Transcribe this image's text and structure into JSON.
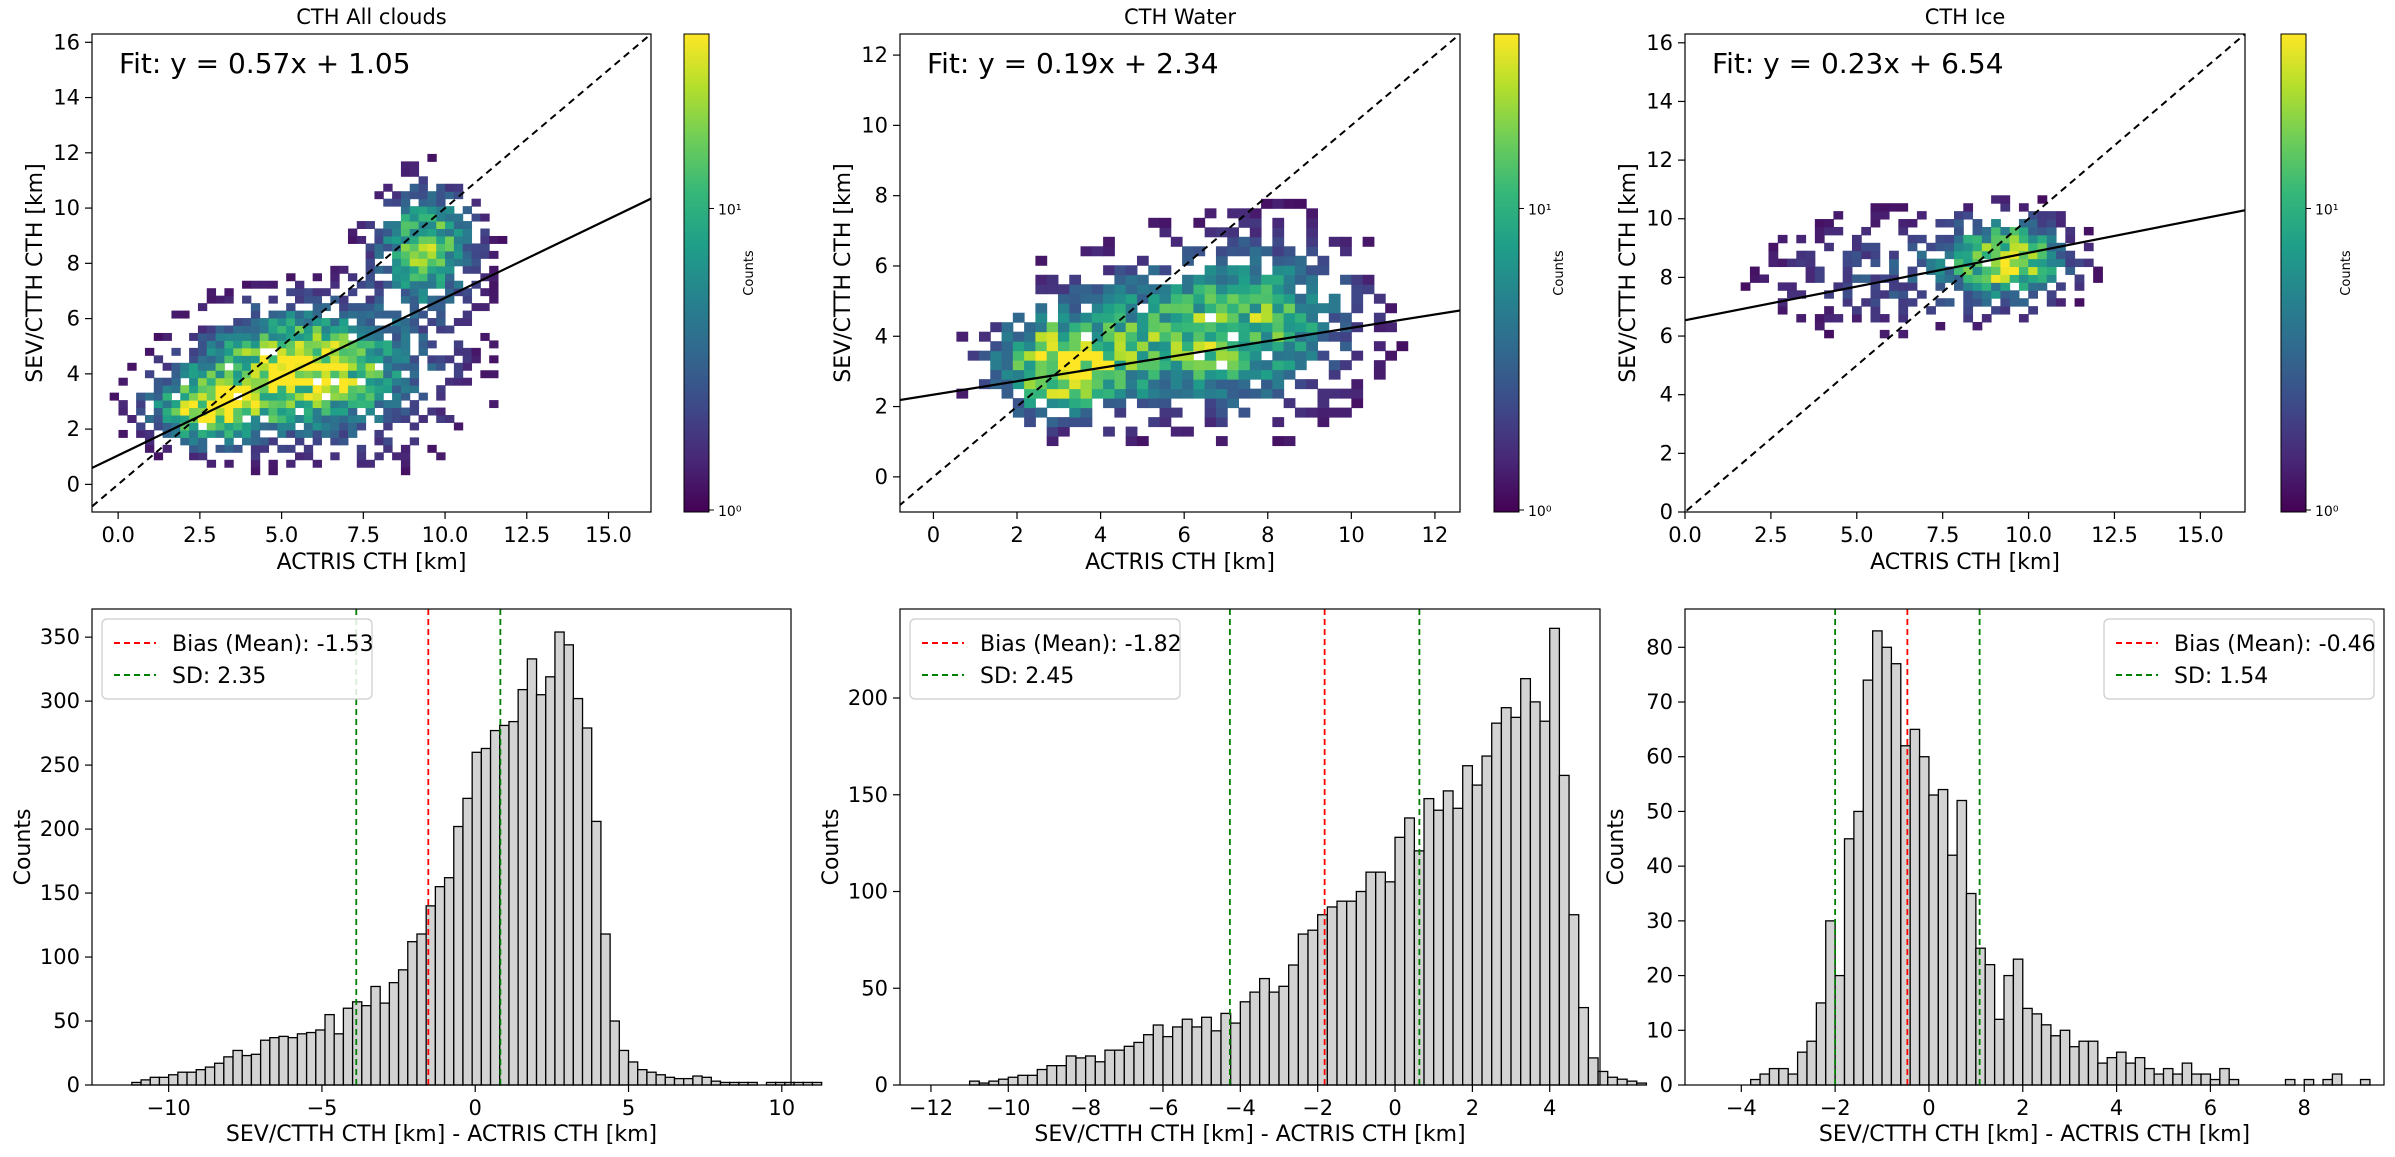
{
  "chart_data": [
    {
      "type": "heatmap",
      "title": "CTH All clouds",
      "xlabel": "ACTRIS CTH [km]",
      "ylabel": "SEV/CTTH CTH [km]",
      "xlim": [
        -0.8,
        16.3
      ],
      "ylim": [
        -1.0,
        16.3
      ],
      "xticks": [
        "0.0",
        "2.5",
        "5.0",
        "7.5",
        "10.0",
        "12.5",
        "15.0"
      ],
      "yticks": [
        "0",
        "2",
        "4",
        "6",
        "8",
        "10",
        "12",
        "14",
        "16"
      ],
      "fit_label": "Fit: y = 0.57x + 1.05",
      "fit": {
        "slope": 0.57,
        "intercept": 1.05
      },
      "one_to_one_line": true,
      "colorbar": {
        "label": "Counts",
        "scale": "log",
        "ticks": [
          "10⁰",
          "10¹"
        ],
        "colormap": "viridis"
      },
      "density_blobs": [
        {
          "x": 2.6,
          "y": 2.6,
          "sx": 1.2,
          "sy": 0.9,
          "w": 1.0
        },
        {
          "x": 5.0,
          "y": 4.2,
          "sx": 1.8,
          "sy": 1.3,
          "w": 0.8
        },
        {
          "x": 9.3,
          "y": 8.5,
          "sx": 1.0,
          "sy": 1.4,
          "w": 0.9
        },
        {
          "x": 7.0,
          "y": 3.8,
          "sx": 2.2,
          "sy": 1.8,
          "w": 0.5
        }
      ]
    },
    {
      "type": "heatmap",
      "title": "CTH Water",
      "xlabel": "ACTRIS CTH [km]",
      "ylabel": "SEV/CTTH CTH [km]",
      "xlim": [
        -0.8,
        12.6
      ],
      "ylim": [
        -1.0,
        12.6
      ],
      "xticks": [
        "0",
        "2",
        "4",
        "6",
        "8",
        "10",
        "12"
      ],
      "yticks": [
        "0",
        "2",
        "4",
        "6",
        "8",
        "10",
        "12"
      ],
      "fit_label": "Fit: y = 0.19x + 2.34",
      "fit": {
        "slope": 0.19,
        "intercept": 2.34
      },
      "one_to_one_line": true,
      "colorbar": {
        "label": "Counts",
        "scale": "log",
        "ticks": [
          "10⁰",
          "10¹"
        ],
        "colormap": "viridis"
      },
      "density_blobs": [
        {
          "x": 2.8,
          "y": 3.0,
          "sx": 1.0,
          "sy": 0.9,
          "w": 1.0
        },
        {
          "x": 5.5,
          "y": 3.8,
          "sx": 2.0,
          "sy": 1.4,
          "w": 0.7
        },
        {
          "x": 8.0,
          "y": 4.5,
          "sx": 1.5,
          "sy": 1.6,
          "w": 0.5
        }
      ]
    },
    {
      "type": "heatmap",
      "title": "CTH Ice",
      "xlabel": "ACTRIS CTH [km]",
      "ylabel": "SEV/CTTH CTH [km]",
      "xlim": [
        0.0,
        16.3
      ],
      "ylim": [
        0.0,
        16.3
      ],
      "xticks": [
        "0.0",
        "2.5",
        "5.0",
        "7.5",
        "10.0",
        "12.5",
        "15.0"
      ],
      "yticks": [
        "0",
        "2",
        "4",
        "6",
        "8",
        "10",
        "12",
        "14",
        "16"
      ],
      "fit_label": "Fit: y = 0.23x + 6.54",
      "fit": {
        "slope": 0.23,
        "intercept": 6.54
      },
      "one_to_one_line": true,
      "colorbar": {
        "label": "Counts",
        "scale": "log",
        "ticks": [
          "10⁰",
          "10¹"
        ],
        "colormap": "viridis"
      },
      "density_blobs": [
        {
          "x": 9.3,
          "y": 8.5,
          "sx": 1.1,
          "sy": 0.9,
          "w": 1.0
        },
        {
          "x": 6.0,
          "y": 8.0,
          "sx": 2.5,
          "sy": 1.3,
          "w": 0.3
        }
      ]
    },
    {
      "type": "bar",
      "xlabel": "SEV/CTTH CTH [km] - ACTRIS CTH [km]",
      "ylabel": "Counts",
      "xlim": [
        -12.5,
        10.3
      ],
      "ylim": [
        0,
        372
      ],
      "xticks": [
        -10,
        -5,
        0,
        5,
        10
      ],
      "yticks": [
        0,
        50,
        100,
        150,
        200,
        250,
        300,
        350
      ],
      "bin_start": -11.2,
      "bin_width": 0.3,
      "values": [
        2,
        4,
        6,
        6,
        8,
        10,
        10,
        12,
        14,
        17,
        22,
        27,
        23,
        24,
        35,
        37,
        38,
        37,
        40,
        41,
        43,
        55,
        40,
        60,
        65,
        62,
        77,
        64,
        80,
        90,
        112,
        118,
        140,
        155,
        162,
        202,
        224,
        260,
        263,
        277,
        281,
        284,
        309,
        333,
        305,
        319,
        354,
        344,
        302,
        279,
        206,
        118,
        50,
        27,
        18,
        12,
        10,
        8,
        6,
        5,
        5,
        7,
        6,
        3,
        2,
        2,
        2,
        2,
        0,
        2,
        2,
        2,
        2,
        2,
        2
      ],
      "bias": -1.53,
      "sd_lines": [
        -3.88,
        0.82
      ],
      "legend": [
        {
          "label": "Bias (Mean): -1.53",
          "color": "#ff0000"
        },
        {
          "label": "SD: 2.35",
          "color": "#008000"
        }
      ],
      "legend_position": "upper-left"
    },
    {
      "type": "bar",
      "xlabel": "SEV/CTTH CTH [km] - ACTRIS CTH [km]",
      "ylabel": "Counts",
      "xlim": [
        -12.8,
        5.3
      ],
      "ylim": [
        0,
        246
      ],
      "xticks": [
        -12,
        -10,
        -8,
        -6,
        -4,
        -2,
        0,
        2,
        4
      ],
      "yticks": [
        0,
        50,
        100,
        150,
        200
      ],
      "bin_start": -11.0,
      "bin_width": 0.25,
      "values": [
        2,
        1,
        2,
        3,
        4,
        5,
        5,
        8,
        10,
        10,
        15,
        14,
        15,
        12,
        18,
        18,
        20,
        22,
        26,
        31,
        25,
        30,
        34,
        30,
        35,
        28,
        37,
        32,
        43,
        48,
        55,
        48,
        51,
        62,
        78,
        80,
        88,
        92,
        95,
        95,
        100,
        110,
        110,
        105,
        128,
        138,
        121,
        148,
        142,
        152,
        143,
        165,
        155,
        170,
        187,
        195,
        190,
        210,
        198,
        188,
        236,
        160,
        88,
        40,
        14,
        7,
        4,
        3,
        2,
        1
      ],
      "bias": -1.82,
      "sd_lines": [
        -4.27,
        0.63
      ],
      "legend": [
        {
          "label": "Bias (Mean): -1.82",
          "color": "#ff0000"
        },
        {
          "label": "SD: 2.45",
          "color": "#008000"
        }
      ],
      "legend_position": "upper-left"
    },
    {
      "type": "bar",
      "xlabel": "SEV/CTTH CTH [km] - ACTRIS CTH [km]",
      "ylabel": "Counts",
      "xlim": [
        -5.2,
        9.7
      ],
      "ylim": [
        0,
        87
      ],
      "xticks": [
        -4,
        -2,
        0,
        2,
        4,
        6,
        8
      ],
      "yticks": [
        0,
        10,
        20,
        30,
        40,
        50,
        60,
        70,
        80
      ],
      "bin_start": -3.8,
      "bin_width": 0.2,
      "values": [
        1,
        2,
        3,
        3,
        2,
        6,
        8,
        15,
        30,
        20,
        45,
        50,
        74,
        83,
        80,
        77,
        62,
        65,
        60,
        53,
        54,
        42,
        52,
        35,
        25,
        22,
        12,
        20,
        23,
        14,
        13,
        11,
        9,
        10,
        7,
        8,
        8,
        4,
        5,
        6,
        4,
        5,
        3,
        2,
        3,
        2,
        4,
        2,
        2,
        1,
        3,
        1,
        0,
        0,
        0,
        0,
        0,
        1,
        0,
        1,
        0,
        1,
        2,
        0,
        0,
        1,
        0,
        0,
        0,
        0
      ],
      "bias": -0.46,
      "sd_lines": [
        -2.0,
        1.08
      ],
      "legend": [
        {
          "label": "Bias (Mean): -0.46",
          "color": "#ff0000"
        },
        {
          "label": "SD: 1.54",
          "color": "#008000"
        }
      ],
      "legend_position": "upper-right"
    }
  ]
}
